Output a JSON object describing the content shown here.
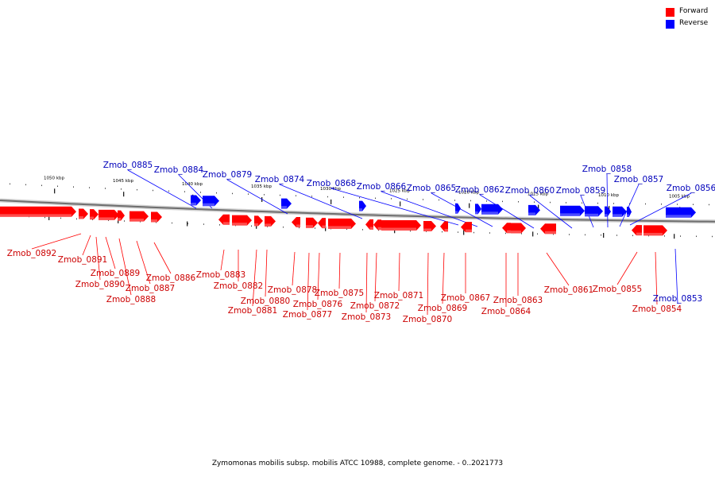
{
  "legend": {
    "forward_label": "Forward",
    "reverse_label": "Reverse",
    "forward_color": "#ff0000",
    "reverse_color": "#0000ff"
  },
  "caption": "Zymomonas mobilis subsp. mobilis ATCC 10988, complete genome. - 0..2021773",
  "scale_labels": [
    "1050 kbp",
    "1045 kbp",
    "1040 kbp",
    "1035 kbp",
    "1030 kbp",
    "1025 kbp",
    "1020 kbp",
    "1015 kbp",
    "1010 kbp",
    "1005 kbp"
  ],
  "genes": [
    {
      "id": "Zmob_0892",
      "strand": "forward"
    },
    {
      "id": "Zmob_0891",
      "strand": "forward"
    },
    {
      "id": "Zmob_0890",
      "strand": "forward"
    },
    {
      "id": "Zmob_0889",
      "strand": "forward"
    },
    {
      "id": "Zmob_0888",
      "strand": "forward"
    },
    {
      "id": "Zmob_0887",
      "strand": "forward"
    },
    {
      "id": "Zmob_0886",
      "strand": "forward"
    },
    {
      "id": "Zmob_0885",
      "strand": "reverse"
    },
    {
      "id": "Zmob_0884",
      "strand": "reverse"
    },
    {
      "id": "Zmob_0883",
      "strand": "forward"
    },
    {
      "id": "Zmob_0882",
      "strand": "forward"
    },
    {
      "id": "Zmob_0881",
      "strand": "forward"
    },
    {
      "id": "Zmob_0880",
      "strand": "forward"
    },
    {
      "id": "Zmob_0879",
      "strand": "reverse"
    },
    {
      "id": "Zmob_0878",
      "strand": "forward"
    },
    {
      "id": "Zmob_0877",
      "strand": "forward"
    },
    {
      "id": "Zmob_0876",
      "strand": "forward"
    },
    {
      "id": "Zmob_0875",
      "strand": "forward"
    },
    {
      "id": "Zmob_0874",
      "strand": "reverse"
    },
    {
      "id": "Zmob_0873",
      "strand": "forward"
    },
    {
      "id": "Zmob_0872",
      "strand": "forward"
    },
    {
      "id": "Zmob_0871",
      "strand": "forward"
    },
    {
      "id": "Zmob_0870",
      "strand": "forward"
    },
    {
      "id": "Zmob_0869",
      "strand": "forward"
    },
    {
      "id": "Zmob_0868",
      "strand": "reverse"
    },
    {
      "id": "Zmob_0867",
      "strand": "forward"
    },
    {
      "id": "Zmob_0866",
      "strand": "reverse"
    },
    {
      "id": "Zmob_0865",
      "strand": "reverse"
    },
    {
      "id": "Zmob_0864",
      "strand": "forward"
    },
    {
      "id": "Zmob_0863",
      "strand": "forward"
    },
    {
      "id": "Zmob_0862",
      "strand": "reverse"
    },
    {
      "id": "Zmob_0861",
      "strand": "forward"
    },
    {
      "id": "Zmob_0860",
      "strand": "reverse"
    },
    {
      "id": "Zmob_0859",
      "strand": "reverse"
    },
    {
      "id": "Zmob_0858",
      "strand": "reverse"
    },
    {
      "id": "Zmob_0857",
      "strand": "reverse"
    },
    {
      "id": "Zmob_0856",
      "strand": "reverse"
    },
    {
      "id": "Zmob_0855",
      "strand": "forward"
    },
    {
      "id": "Zmob_0854",
      "strand": "forward"
    },
    {
      "id": "Zmob_0853",
      "strand": "reverse"
    }
  ]
}
